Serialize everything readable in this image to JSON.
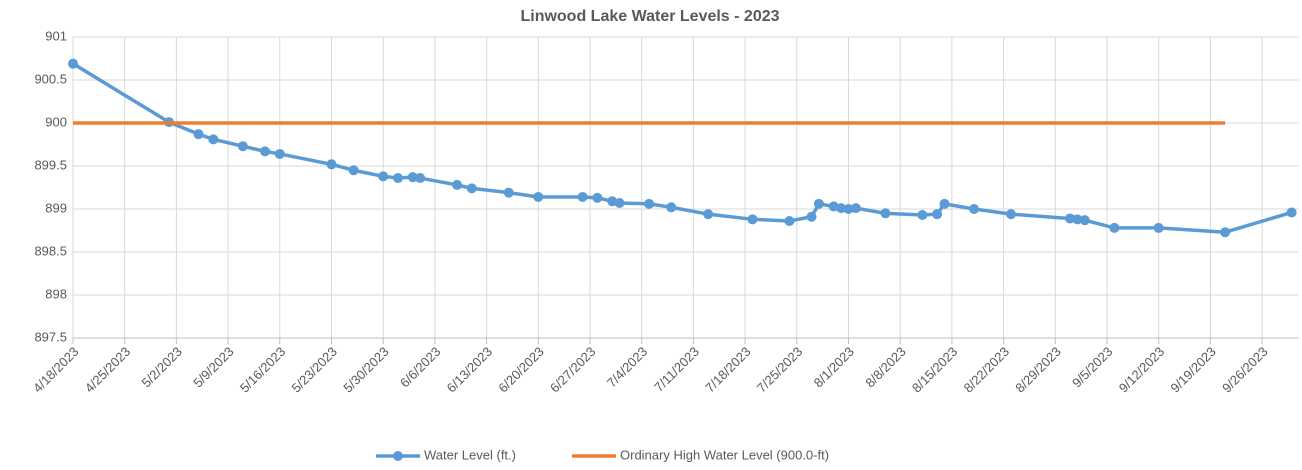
{
  "chart_data": {
    "type": "line",
    "title": "Linwood Lake Water Levels - 2023",
    "xlim": [
      "2023-04-18",
      "2023-10-01"
    ],
    "xticks": [
      {
        "value": "2023-04-18",
        "label": "4/18/2023"
      },
      {
        "value": "2023-04-25",
        "label": "4/25/2023"
      },
      {
        "value": "2023-05-02",
        "label": "5/2/2023"
      },
      {
        "value": "2023-05-09",
        "label": "5/9/2023"
      },
      {
        "value": "2023-05-16",
        "label": "5/16/2023"
      },
      {
        "value": "2023-05-23",
        "label": "5/23/2023"
      },
      {
        "value": "2023-05-30",
        "label": "5/30/2023"
      },
      {
        "value": "2023-06-06",
        "label": "6/6/2023"
      },
      {
        "value": "2023-06-13",
        "label": "6/13/2023"
      },
      {
        "value": "2023-06-20",
        "label": "6/20/2023"
      },
      {
        "value": "2023-06-27",
        "label": "6/27/2023"
      },
      {
        "value": "2023-07-04",
        "label": "7/4/2023"
      },
      {
        "value": "2023-07-11",
        "label": "7/11/2023"
      },
      {
        "value": "2023-07-18",
        "label": "7/18/2023"
      },
      {
        "value": "2023-07-25",
        "label": "7/25/2023"
      },
      {
        "value": "2023-08-01",
        "label": "8/1/2023"
      },
      {
        "value": "2023-08-08",
        "label": "8/8/2023"
      },
      {
        "value": "2023-08-15",
        "label": "8/15/2023"
      },
      {
        "value": "2023-08-22",
        "label": "8/22/2023"
      },
      {
        "value": "2023-08-29",
        "label": "8/29/2023"
      },
      {
        "value": "2023-09-05",
        "label": "9/5/2023"
      },
      {
        "value": "2023-09-12",
        "label": "9/12/2023"
      },
      {
        "value": "2023-09-19",
        "label": "9/19/2023"
      },
      {
        "value": "2023-09-26",
        "label": "9/26/2023"
      }
    ],
    "ylim": [
      897.5,
      901
    ],
    "yticks": [
      897.5,
      898,
      898.5,
      899,
      899.5,
      900,
      900.5,
      901
    ],
    "grid": true,
    "legend": "bottom",
    "series": [
      {
        "name": "Water Level (ft.)",
        "color": "#5b9bd5",
        "marker": true,
        "x": [
          "2023-04-18",
          "2023-05-01",
          "2023-05-05",
          "2023-05-07",
          "2023-05-11",
          "2023-05-14",
          "2023-05-16",
          "2023-05-23",
          "2023-05-26",
          "2023-05-30",
          "2023-06-01",
          "2023-06-03",
          "2023-06-04",
          "2023-06-09",
          "2023-06-11",
          "2023-06-16",
          "2023-06-20",
          "2023-06-26",
          "2023-06-28",
          "2023-06-30",
          "2023-07-01",
          "2023-07-05",
          "2023-07-08",
          "2023-07-13",
          "2023-07-19",
          "2023-07-24",
          "2023-07-27",
          "2023-07-28",
          "2023-07-30",
          "2023-07-31",
          "2023-08-01",
          "2023-08-02",
          "2023-08-06",
          "2023-08-11",
          "2023-08-13",
          "2023-08-14",
          "2023-08-18",
          "2023-08-23",
          "2023-08-31",
          "2023-09-01",
          "2023-09-02",
          "2023-09-06",
          "2023-09-12",
          "2023-09-21",
          "2023-09-30"
        ],
        "values": [
          900.69,
          900.01,
          899.87,
          899.81,
          899.73,
          899.67,
          899.64,
          899.52,
          899.45,
          899.38,
          899.36,
          899.37,
          899.36,
          899.28,
          899.24,
          899.19,
          899.14,
          899.14,
          899.13,
          899.09,
          899.07,
          899.06,
          899.02,
          898.94,
          898.88,
          898.86,
          898.91,
          899.06,
          899.03,
          899.01,
          899.0,
          899.01,
          898.95,
          898.93,
          898.94,
          899.06,
          899.0,
          898.94,
          898.89,
          898.88,
          898.87,
          898.78,
          898.78,
          898.73,
          898.96
        ]
      },
      {
        "name": "Ordinary High Water Level (900.0-ft)",
        "color": "#ed7d31",
        "marker": false,
        "x": [
          "2023-04-18",
          "2023-09-21"
        ],
        "values": [
          900,
          900
        ]
      }
    ]
  }
}
